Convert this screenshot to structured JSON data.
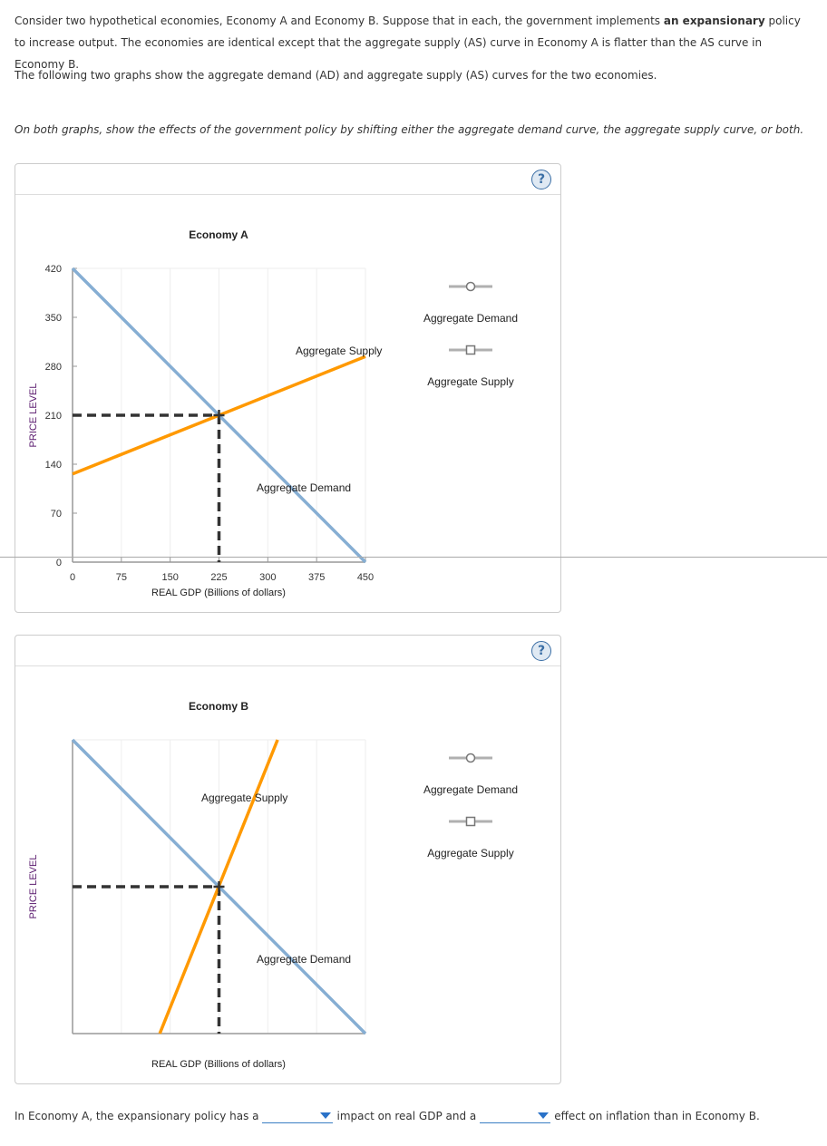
{
  "intro": {
    "p1_a": "Consider two hypothetical economies, Economy A and Economy B. Suppose that in each, the government implements ",
    "p1_bold": "an expansionary",
    "p1_b": " policy to increase output. The economies are identical except that the aggregate supply (AS) curve in Economy A is flatter than the AS curve in Economy B.",
    "p2": "The following two graphs show the aggregate demand (AD) and aggregate supply (AS) curves for the two economies.",
    "instruction": "On both graphs, show the effects of the government policy by shifting either the aggregate demand curve, the aggregate supply curve, or both."
  },
  "help_label": "?",
  "legend": [
    "Aggregate Demand",
    "Aggregate Supply"
  ],
  "colors": {
    "ad": "#86aed3",
    "as": "#ff9900",
    "dash": "#333333",
    "legend": "#b0b0b0"
  },
  "chart_data": [
    {
      "type": "line",
      "title": "Economy A",
      "xlabel": "REAL GDP (Billions of dollars)",
      "ylabel": "PRICE LEVEL",
      "xlim": [
        0,
        450
      ],
      "ylim": [
        0,
        420
      ],
      "xticks": [
        "0",
        "75",
        "150",
        "225",
        "300",
        "375",
        "450"
      ],
      "yticks": [
        "0",
        "70",
        "140",
        "210",
        "280",
        "350",
        "420"
      ],
      "grid": "vertical",
      "series": [
        {
          "name": "Aggregate Demand",
          "points": [
            [
              0,
              420
            ],
            [
              450,
              0
            ]
          ]
        },
        {
          "name": "Aggregate Supply",
          "points": [
            [
              0,
              126
            ],
            [
              450,
              294
            ]
          ]
        }
      ],
      "equilibrium": [
        225,
        210
      ]
    },
    {
      "type": "line",
      "title": "Economy B",
      "xlabel": "REAL GDP (Billions of dollars)",
      "ylabel": "PRICE LEVEL",
      "xlim": [
        0,
        450
      ],
      "ylim": [
        0,
        420
      ],
      "xticks": [],
      "yticks": [],
      "grid": "vertical",
      "series": [
        {
          "name": "Aggregate Demand",
          "points": [
            [
              0,
              420
            ],
            [
              450,
              0
            ]
          ]
        },
        {
          "name": "Aggregate Supply",
          "points": [
            [
              134,
              0
            ],
            [
              315,
              420
            ]
          ]
        }
      ],
      "equilibrium": [
        225,
        210
      ]
    }
  ],
  "question": {
    "part1": "In Economy A, the expansionary policy has a",
    "part2": "impact on real GDP and a",
    "part3": "effect on inflation than in Economy B.",
    "dropdown1": "",
    "dropdown2": ""
  }
}
